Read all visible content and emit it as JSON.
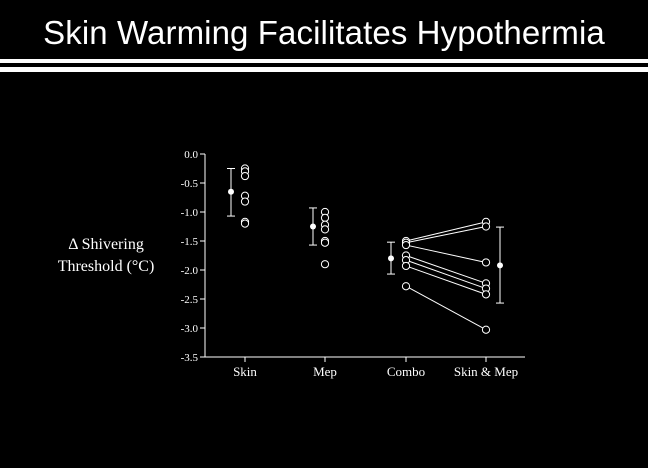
{
  "slide": {
    "title": "Skin Warming Facilitates Hypothermia"
  },
  "colors": {
    "background": "#000000",
    "foreground": "#ffffff"
  },
  "chart_data": {
    "type": "scatter",
    "title": "",
    "ylabel_lines": [
      "Δ Shivering",
      "Threshold (°C)"
    ],
    "ylim": [
      -3.5,
      0.0
    ],
    "yticks": [
      "0.0",
      "-0.5",
      "-1.0",
      "-1.5",
      "-2.0",
      "-2.5",
      "-3.0",
      "-3.5"
    ],
    "categories": [
      "Skin",
      "Mep",
      "Combo",
      "Skin & Mep"
    ],
    "means": [
      {
        "category": "Skin",
        "mean": -0.65,
        "sd_upper": -0.25,
        "sd_lower": -1.07
      },
      {
        "category": "Mep",
        "mean": -1.25,
        "sd_upper": -0.93,
        "sd_lower": -1.57
      },
      {
        "category": "Combo",
        "mean": -1.8,
        "sd_upper": -1.52,
        "sd_lower": -2.07
      },
      {
        "category": "Skin & Mep",
        "mean": -1.92,
        "sd_upper": -1.26,
        "sd_lower": -2.57
      }
    ],
    "individuals": {
      "Skin": [
        -0.25,
        -0.3,
        -0.38,
        -0.72,
        -0.82,
        -1.17,
        -1.2
      ],
      "Mep": [
        -1.0,
        -1.1,
        -1.22,
        -1.3,
        -1.5,
        -1.53,
        -1.9
      ],
      "paired": [
        {
          "combo": -1.5,
          "skin_mep": -1.17
        },
        {
          "combo": -1.53,
          "skin_mep": -1.25
        },
        {
          "combo": -1.57,
          "skin_mep": -1.87
        },
        {
          "combo": -1.75,
          "skin_mep": -2.23
        },
        {
          "combo": -1.83,
          "skin_mep": -2.32
        },
        {
          "combo": -1.93,
          "skin_mep": -2.42
        },
        {
          "combo": -2.28,
          "skin_mep": -3.03
        }
      ]
    }
  }
}
